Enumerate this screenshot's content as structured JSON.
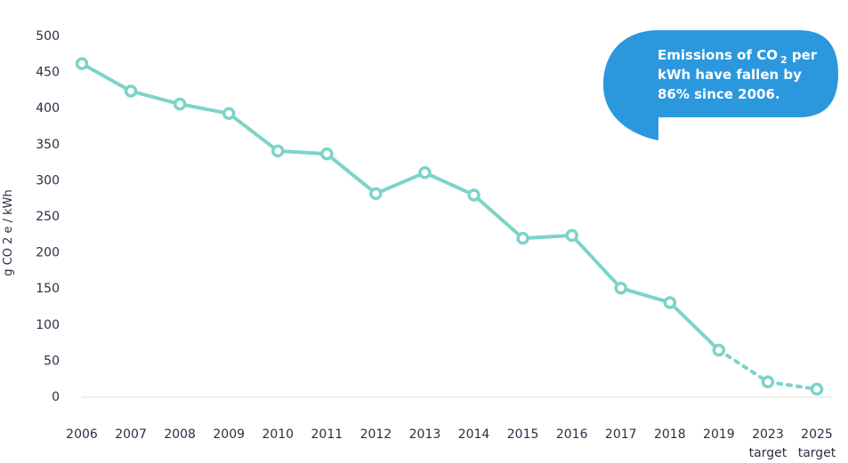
{
  "chart_data": {
    "type": "line",
    "ylabel": "g CO 2 e / kWh",
    "ylim": [
      0,
      500
    ],
    "yticks": [
      0,
      50,
      100,
      150,
      200,
      250,
      300,
      350,
      400,
      450,
      500
    ],
    "grid": false,
    "categories": [
      "2006",
      "2007",
      "2008",
      "2009",
      "2010",
      "2011",
      "2012",
      "2013",
      "2014",
      "2015",
      "2016",
      "2017",
      "2018",
      "2019",
      "2023",
      "2025"
    ],
    "category_sublabels": [
      "",
      "",
      "",
      "",
      "",
      "",
      "",
      "",
      "",
      "",
      "",
      "",
      "",
      "",
      "target",
      "target"
    ],
    "series": [
      {
        "values": [
          461,
          423,
          405,
          392,
          340,
          336,
          281,
          310,
          279,
          219,
          223,
          150,
          130,
          64,
          20,
          10
        ],
        "dashed_from_index": 13
      }
    ],
    "annotation": {
      "line1_a": "Emissions of CO",
      "line1_sub": "2",
      "line1_b": " per",
      "line2": "kWh have fallen by",
      "line3": "86% since 2006."
    }
  },
  "colors": {
    "line": "#7dd3c8",
    "callout": "#2b98de",
    "text": "#2b2f45",
    "axis": "#dddddd"
  }
}
